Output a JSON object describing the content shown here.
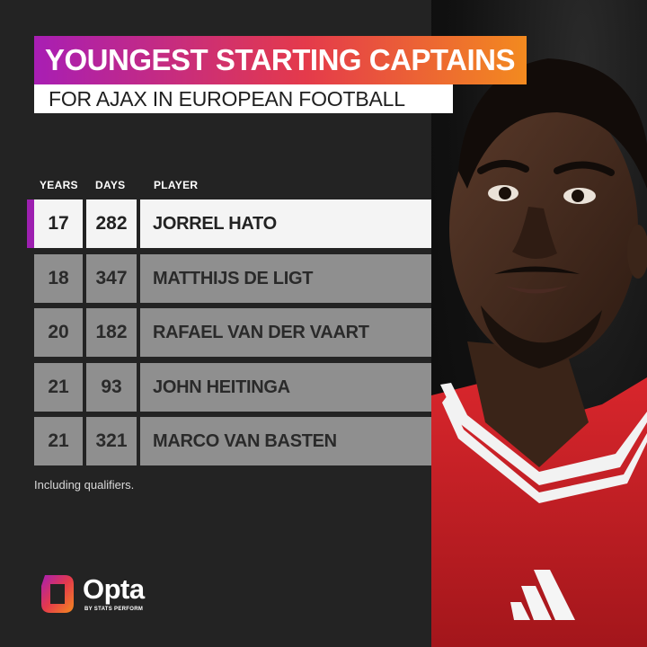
{
  "title": "YOUNGEST STARTING CAPTAINS",
  "subtitle": "FOR AJAX IN EUROPEAN FOOTBALL",
  "columns": {
    "years": "YEARS",
    "days": "DAYS",
    "player": "PLAYER"
  },
  "rows": [
    {
      "years": "17",
      "days": "282",
      "player": "JORREL HATO",
      "highlighted": true
    },
    {
      "years": "18",
      "days": "347",
      "player": "MATTHIJS DE LIGT",
      "highlighted": false
    },
    {
      "years": "20",
      "days": "182",
      "player": "RAFAEL VAN DER VAART",
      "highlighted": false
    },
    {
      "years": "21",
      "days": "93",
      "player": "JOHN HEITINGA",
      "highlighted": false
    },
    {
      "years": "21",
      "days": "321",
      "player": "MARCO VAN BASTEN",
      "highlighted": false
    }
  ],
  "footnote": "Including qualifiers.",
  "logo": {
    "name": "Opta",
    "tagline": "BY STATS PERFORM"
  },
  "colors": {
    "background": "#232323",
    "accent_purple": "#a81eb4",
    "accent_red": "#e43a4b",
    "accent_orange": "#f38a1f",
    "row_default": "#8f8f8f",
    "row_highlight": "#f4f4f4"
  },
  "icons": {
    "photo": "player-portrait-image",
    "logo": "opta-logo-icon"
  }
}
